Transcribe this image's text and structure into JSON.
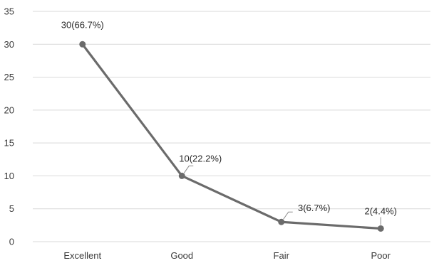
{
  "chart_data": {
    "type": "line",
    "categories": [
      "Excellent",
      "Good",
      "Fair",
      "Poor"
    ],
    "values": [
      30,
      10,
      3,
      2
    ],
    "data_labels": [
      "30(66.7%)",
      "10(22.2%)",
      "3(6.7%)",
      "2(4.4%)"
    ],
    "ylim": [
      0,
      35
    ],
    "yticks": [
      0,
      5,
      10,
      15,
      20,
      25,
      30,
      35
    ],
    "grid": true,
    "legend": "none",
    "title": "",
    "xlabel": "",
    "ylabel": "",
    "colors": {
      "line": "#6b6b6b",
      "marker": "#6b6b6b",
      "grid": "#d9d9d9",
      "text": "#3a3a3a"
    }
  }
}
